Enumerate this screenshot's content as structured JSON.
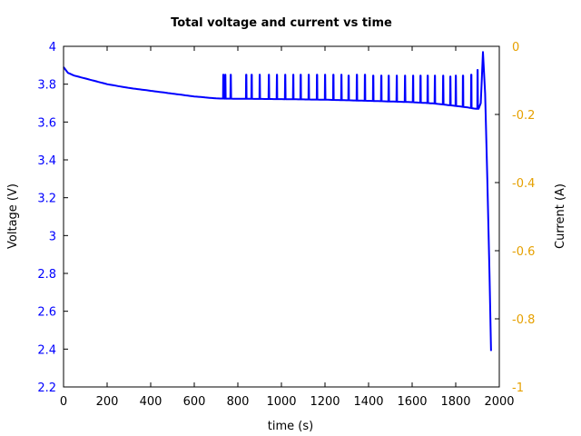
{
  "chart_data": {
    "type": "line",
    "title": "Total voltage and current vs time",
    "xlabel": "time (s)",
    "ylabel": "Voltage (V)",
    "y2label": "Current (A)",
    "xlim": [
      0,
      2000
    ],
    "ylim": [
      2.2,
      4.0
    ],
    "y2lim": [
      -1.0,
      0.0
    ],
    "grid": false,
    "legend": null,
    "x_ticks": [
      "0",
      "200",
      "400",
      "600",
      "800",
      "1000",
      "1200",
      "1400",
      "1600",
      "1800",
      "2000"
    ],
    "y_ticks": [
      "2.2",
      "2.4",
      "2.6",
      "2.8",
      "3",
      "3.2",
      "3.4",
      "3.6",
      "3.8",
      "4"
    ],
    "y2_ticks": [
      "-1",
      "-0.8",
      "-0.6",
      "-0.4",
      "-0.2",
      "0"
    ],
    "colors": {
      "voltage_line": "#0000ff",
      "left_axis": "#0000ff",
      "right_axis": "#e6a000",
      "frame": "#000000"
    },
    "series": [
      {
        "name": "Voltage",
        "axis": "left",
        "base_curve": {
          "x": [
            0,
            20,
            50,
            100,
            200,
            300,
            400,
            500,
            600,
            700,
            720,
            800,
            1000,
            1200,
            1400,
            1600,
            1700,
            1800,
            1850,
            1890
          ],
          "y": [
            3.89,
            3.86,
            3.845,
            3.83,
            3.8,
            3.78,
            3.765,
            3.75,
            3.735,
            3.725,
            3.724,
            3.723,
            3.721,
            3.718,
            3.712,
            3.705,
            3.698,
            3.685,
            3.678,
            3.67
          ]
        },
        "spikes": {
          "x": [
            733,
            742,
            767,
            838,
            863,
            900,
            942,
            979,
            1017,
            1054,
            1088,
            1125,
            1163,
            1200,
            1238,
            1275,
            1308,
            1346,
            1383,
            1421,
            1458,
            1492,
            1529,
            1567,
            1604,
            1638,
            1671,
            1704,
            1742,
            1775,
            1800,
            1833,
            1871,
            1900
          ],
          "peak_y": [
            3.85,
            3.85,
            3.85,
            3.85,
            3.85,
            3.85,
            3.85,
            3.85,
            3.85,
            3.85,
            3.85,
            3.85,
            3.85,
            3.85,
            3.85,
            3.85,
            3.845,
            3.85,
            3.85,
            3.845,
            3.845,
            3.845,
            3.845,
            3.845,
            3.845,
            3.845,
            3.845,
            3.845,
            3.845,
            3.84,
            3.845,
            3.845,
            3.85,
            3.875
          ]
        },
        "end": {
          "x": [
            1905,
            1915,
            1925,
            1935,
            1945,
            1955,
            1962
          ],
          "y": [
            3.67,
            3.7,
            3.97,
            3.75,
            3.3,
            2.8,
            2.39
          ]
        }
      }
    ]
  }
}
